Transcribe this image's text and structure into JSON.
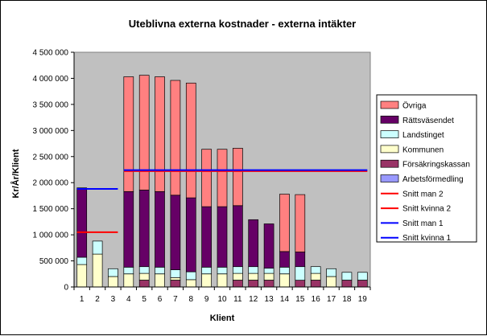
{
  "chart_data": {
    "type": "bar",
    "stacked": true,
    "title": "Uteblivna externa kostnader - externa intäkter",
    "xlabel": "Klient",
    "ylabel": "Kr/År/Klient",
    "ylim": [
      0,
      4500000
    ],
    "ytick_step": 500000,
    "ytick_labels": [
      "0",
      "500 000",
      "1 000 000",
      "1 500 000",
      "2 000 000",
      "2 500 000",
      "3 000 000",
      "3 500 000",
      "4 000 000",
      "4 500 000"
    ],
    "categories": [
      "1",
      "2",
      "3",
      "4",
      "5",
      "6",
      "7",
      "8",
      "9",
      "10",
      "11",
      "12",
      "13",
      "14",
      "15",
      "16",
      "17",
      "18",
      "19"
    ],
    "grid": false,
    "plot_background": "#c0c0c0",
    "legend_position": "right",
    "series": [
      {
        "name": "Arbetsförmedling",
        "color": "#9999ff",
        "values": [
          0,
          0,
          0,
          0,
          0,
          0,
          0,
          0,
          0,
          0,
          0,
          0,
          0,
          0,
          0,
          0,
          0,
          0,
          0
        ]
      },
      {
        "name": "Försäkringskassan",
        "color": "#993366",
        "values": [
          0,
          0,
          0,
          0,
          130000,
          0,
          130000,
          0,
          0,
          0,
          130000,
          130000,
          130000,
          0,
          130000,
          130000,
          0,
          130000,
          130000
        ]
      },
      {
        "name": "Kommunen",
        "color": "#ffffcc",
        "values": [
          430000,
          630000,
          200000,
          250000,
          130000,
          250000,
          50000,
          140000,
          250000,
          250000,
          130000,
          130000,
          130000,
          250000,
          0,
          130000,
          200000,
          0,
          0
        ]
      },
      {
        "name": "Landstinget",
        "color": "#ccffff",
        "values": [
          140000,
          250000,
          150000,
          130000,
          130000,
          130000,
          150000,
          150000,
          130000,
          130000,
          130000,
          130000,
          100000,
          130000,
          260000,
          130000,
          150000,
          150000,
          150000
        ]
      },
      {
        "name": "Rättsväsendet",
        "color": "#660066",
        "values": [
          1330000,
          0,
          0,
          1450000,
          1470000,
          1450000,
          1430000,
          1420000,
          1160000,
          1160000,
          1170000,
          900000,
          850000,
          300000,
          280000,
          0,
          0,
          0,
          0
        ]
      },
      {
        "name": "Övriga",
        "color": "#ff8080",
        "values": [
          0,
          0,
          0,
          2200000,
          2200000,
          2200000,
          2200000,
          2200000,
          1100000,
          1100000,
          1100000,
          0,
          0,
          1100000,
          1100000,
          0,
          0,
          0,
          0
        ]
      }
    ],
    "lines": [
      {
        "name": "Snitt man 2",
        "color": "#ff0000",
        "y": 1050000,
        "from": "1",
        "to": "3"
      },
      {
        "name": "Snitt kvinna 2",
        "color": "#ff0000",
        "y": 2220000,
        "from": "4",
        "to": "19"
      },
      {
        "name": "Snitt man 1",
        "color": "#0000ff",
        "y": 1880000,
        "from": "1",
        "to": "3"
      },
      {
        "name": "Snitt kvinna 1",
        "color": "#0000ff",
        "y": 2240000,
        "from": "4",
        "to": "19"
      }
    ],
    "legend_order": [
      "Övriga",
      "Rättsväsendet",
      "Landstinget",
      "Kommunen",
      "Försäkringskassan",
      "Arbetsförmedling",
      "Snitt man 2",
      "Snitt kvinna 2",
      "Snitt man 1",
      "Snitt kvinna 1"
    ]
  }
}
